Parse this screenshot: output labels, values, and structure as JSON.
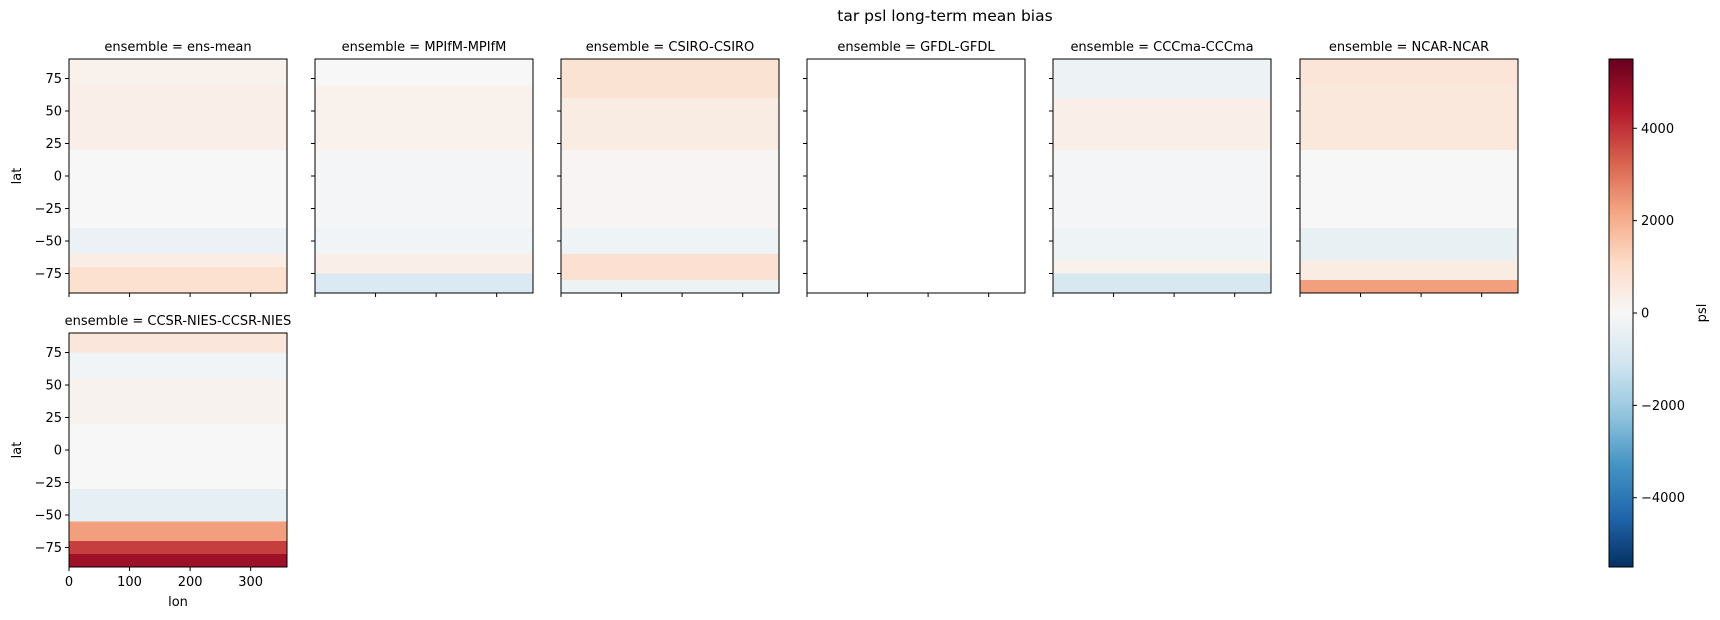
{
  "chart_data": {
    "type": "heatmap",
    "title": "tar psl long-term mean bias",
    "xlabel": "lon",
    "ylabel": "lat",
    "x_ticks": [
      0,
      100,
      200,
      300
    ],
    "y_ticks": [
      75,
      50,
      25,
      0,
      -25,
      -50,
      -75
    ],
    "xlim": [
      0,
      360
    ],
    "ylim": [
      -90,
      90
    ],
    "colorbar": {
      "label": "psl",
      "colormap": "RdBu_r",
      "vmin": -5500,
      "vmax": 5500,
      "ticks": [
        4000,
        2000,
        0,
        -2000,
        -4000
      ],
      "tick_labels": [
        "4000",
        "2000",
        "0",
        "−2000",
        "−4000"
      ]
    },
    "panels": [
      {
        "title": "ensemble = ens-mean",
        "bands": [
          {
            "lat_min": 70,
            "lat_max": 90,
            "value": 250
          },
          {
            "lat_min": 20,
            "lat_max": 70,
            "value": 350
          },
          {
            "lat_min": -40,
            "lat_max": 20,
            "value": 0
          },
          {
            "lat_min": -60,
            "lat_max": -40,
            "value": -350
          },
          {
            "lat_min": -70,
            "lat_max": -60,
            "value": 400
          },
          {
            "lat_min": -90,
            "lat_max": -70,
            "value": 900
          }
        ]
      },
      {
        "title": "ensemble = MPIfM-MPIfM",
        "bands": [
          {
            "lat_min": 70,
            "lat_max": 90,
            "value": 0
          },
          {
            "lat_min": 20,
            "lat_max": 70,
            "value": 250
          },
          {
            "lat_min": -40,
            "lat_max": 20,
            "value": -100
          },
          {
            "lat_min": -60,
            "lat_max": -40,
            "value": -200
          },
          {
            "lat_min": -75,
            "lat_max": -60,
            "value": 350
          },
          {
            "lat_min": -90,
            "lat_max": -75,
            "value": -800
          }
        ]
      },
      {
        "title": "ensemble = CSIRO-CSIRO",
        "bands": [
          {
            "lat_min": 60,
            "lat_max": 90,
            "value": 800
          },
          {
            "lat_min": 20,
            "lat_max": 60,
            "value": 450
          },
          {
            "lat_min": -40,
            "lat_max": 20,
            "value": 100
          },
          {
            "lat_min": -60,
            "lat_max": -40,
            "value": -250
          },
          {
            "lat_min": -80,
            "lat_max": -60,
            "value": 850
          },
          {
            "lat_min": -90,
            "lat_max": -80,
            "value": -300
          }
        ]
      },
      {
        "title": "ensemble = GFDL-GFDL",
        "bands": []
      },
      {
        "title": "ensemble = CCCma-CCCma",
        "bands": [
          {
            "lat_min": 60,
            "lat_max": 90,
            "value": -300
          },
          {
            "lat_min": 20,
            "lat_max": 60,
            "value": 350
          },
          {
            "lat_min": -40,
            "lat_max": 20,
            "value": -100
          },
          {
            "lat_min": -65,
            "lat_max": -40,
            "value": -250
          },
          {
            "lat_min": -75,
            "lat_max": -65,
            "value": 250
          },
          {
            "lat_min": -90,
            "lat_max": -75,
            "value": -900
          }
        ]
      },
      {
        "title": "ensemble = NCAR-NCAR",
        "bands": [
          {
            "lat_min": 70,
            "lat_max": 90,
            "value": 700
          },
          {
            "lat_min": 20,
            "lat_max": 70,
            "value": 600
          },
          {
            "lat_min": -40,
            "lat_max": 20,
            "value": 0
          },
          {
            "lat_min": -65,
            "lat_max": -40,
            "value": -400
          },
          {
            "lat_min": -80,
            "lat_max": -65,
            "value": 450
          },
          {
            "lat_min": -90,
            "lat_max": -80,
            "value": 2300
          }
        ]
      },
      {
        "title": "ensemble = CCSR-NIES-CCSR-NIES",
        "bands": [
          {
            "lat_min": 75,
            "lat_max": 90,
            "value": 650
          },
          {
            "lat_min": 55,
            "lat_max": 75,
            "value": -200
          },
          {
            "lat_min": 20,
            "lat_max": 55,
            "value": 200
          },
          {
            "lat_min": -30,
            "lat_max": 20,
            "value": 0
          },
          {
            "lat_min": -55,
            "lat_max": -30,
            "value": -500
          },
          {
            "lat_min": -70,
            "lat_max": -55,
            "value": 2300
          },
          {
            "lat_min": -80,
            "lat_max": -70,
            "value": 3800
          },
          {
            "lat_min": -90,
            "lat_max": -80,
            "value": 4700
          }
        ]
      }
    ]
  }
}
